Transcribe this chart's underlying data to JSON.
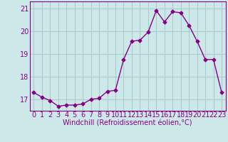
{
  "x": [
    0,
    1,
    2,
    3,
    4,
    5,
    6,
    7,
    8,
    9,
    10,
    11,
    12,
    13,
    14,
    15,
    16,
    17,
    18,
    19,
    20,
    21,
    22,
    23
  ],
  "y": [
    17.3,
    17.1,
    16.95,
    16.7,
    16.75,
    16.75,
    16.8,
    17.0,
    17.05,
    17.35,
    17.4,
    18.75,
    19.55,
    19.6,
    19.95,
    20.9,
    20.4,
    20.85,
    20.8,
    20.25,
    19.55,
    18.75,
    18.75,
    17.3
  ],
  "color": "#880088",
  "bg_color": "#cce8e8",
  "grid_color": "#aacccc",
  "xlabel": "Windchill (Refroidissement éolien,°C)",
  "ylim": [
    16.5,
    21.3
  ],
  "yticks": [
    17,
    18,
    19,
    20,
    21
  ],
  "xticks": [
    0,
    1,
    2,
    3,
    4,
    5,
    6,
    7,
    8,
    9,
    10,
    11,
    12,
    13,
    14,
    15,
    16,
    17,
    18,
    19,
    20,
    21,
    22,
    23
  ],
  "marker": "D",
  "markersize": 2.5,
  "linewidth": 1.0,
  "xlabel_fontsize": 7,
  "tick_fontsize": 7
}
